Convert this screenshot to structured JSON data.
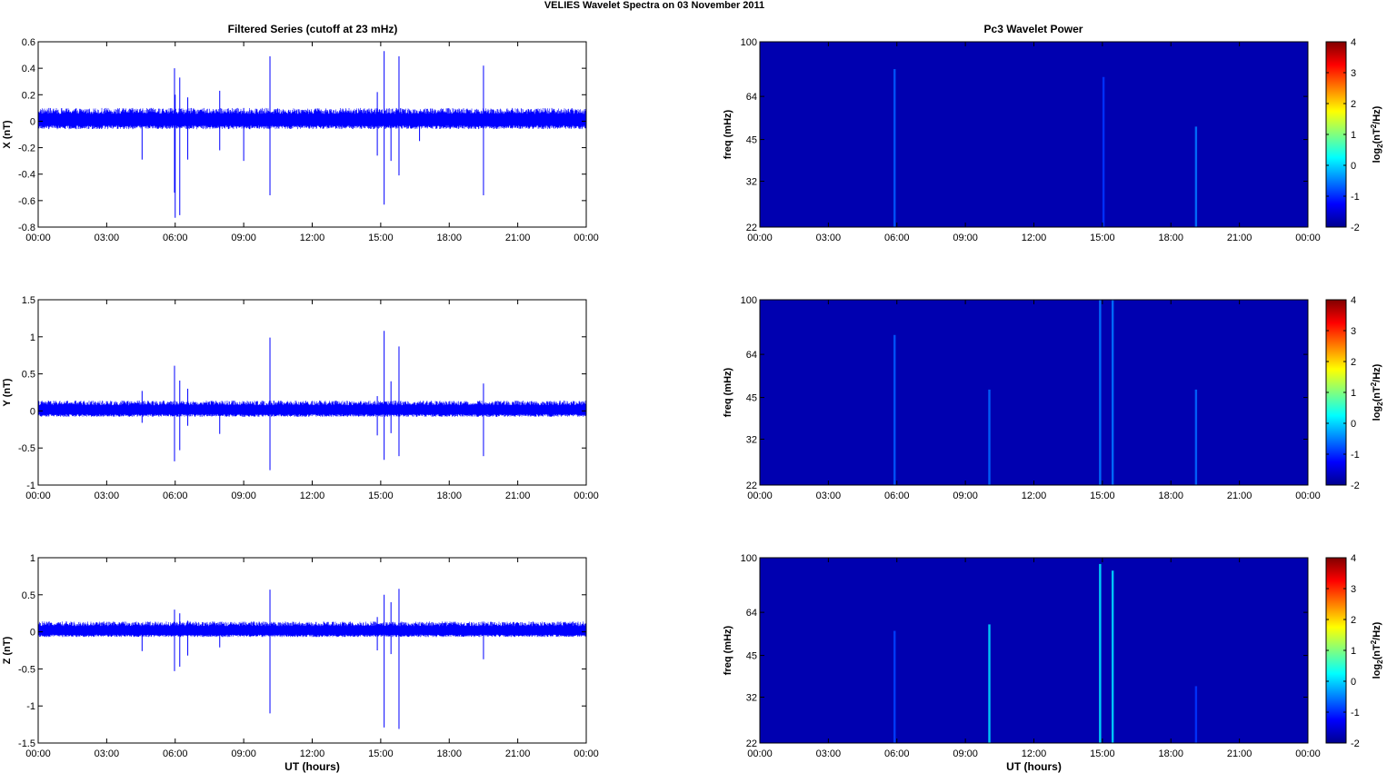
{
  "figure": {
    "title": "VELIES Wavelet Spectra on 03 November  2011",
    "left_title": "Filtered Series (cutoff at 23 mHz)",
    "right_title": "Pc3 Wavelet Power"
  },
  "chart_data": [
    {
      "type": "line",
      "ylabel": "X (nT)",
      "xlabel": "",
      "x_ticks": [
        "00:00",
        "03:00",
        "06:00",
        "09:00",
        "12:00",
        "15:00",
        "18:00",
        "21:00",
        "00:00"
      ],
      "xlim_hours": [
        0,
        24
      ],
      "ylim": [
        -0.8,
        0.6
      ],
      "y_ticks": [
        0.6,
        0.4,
        0.2,
        0,
        -0.2,
        -0.4,
        -0.6,
        -0.8
      ],
      "series": [
        {
          "noise_band": [
            -0.06,
            0.1
          ],
          "spikes": [
            {
              "x": 4.55,
              "lo": -0.29,
              "hi": 0.02
            },
            {
              "x": 5.97,
              "lo": -0.54,
              "hi": 0.4
            },
            {
              "x": 6.0,
              "lo": -0.73,
              "hi": 0.2
            },
            {
              "x": 6.2,
              "lo": -0.71,
              "hi": 0.33
            },
            {
              "x": 6.55,
              "lo": -0.29,
              "hi": 0.18
            },
            {
              "x": 7.95,
              "lo": -0.22,
              "hi": 0.23
            },
            {
              "x": 9.0,
              "lo": -0.3,
              "hi": 0.1
            },
            {
              "x": 10.15,
              "lo": -0.56,
              "hi": 0.49
            },
            {
              "x": 14.85,
              "lo": -0.26,
              "hi": 0.22
            },
            {
              "x": 15.15,
              "lo": -0.63,
              "hi": 0.53
            },
            {
              "x": 15.45,
              "lo": -0.3,
              "hi": 0.05
            },
            {
              "x": 15.8,
              "lo": -0.41,
              "hi": 0.49
            },
            {
              "x": 16.7,
              "lo": -0.15,
              "hi": 0.05
            },
            {
              "x": 19.5,
              "lo": -0.56,
              "hi": 0.42
            }
          ]
        }
      ]
    },
    {
      "type": "line",
      "ylabel": "Y (nT)",
      "xlabel": "",
      "x_ticks": [
        "00:00",
        "03:00",
        "06:00",
        "09:00",
        "12:00",
        "15:00",
        "18:00",
        "21:00",
        "00:00"
      ],
      "xlim_hours": [
        0,
        24
      ],
      "ylim": [
        -1,
        1.5
      ],
      "y_ticks": [
        1.5,
        1,
        0.5,
        0,
        -0.5,
        -1
      ],
      "series": [
        {
          "noise_band": [
            -0.08,
            0.14
          ],
          "spikes": [
            {
              "x": 4.55,
              "lo": -0.16,
              "hi": 0.27
            },
            {
              "x": 5.97,
              "lo": -0.68,
              "hi": 0.61
            },
            {
              "x": 6.2,
              "lo": -0.53,
              "hi": 0.41
            },
            {
              "x": 6.55,
              "lo": -0.2,
              "hi": 0.3
            },
            {
              "x": 7.95,
              "lo": -0.31,
              "hi": 0.1
            },
            {
              "x": 10.15,
              "lo": -0.8,
              "hi": 0.99
            },
            {
              "x": 14.85,
              "lo": -0.33,
              "hi": 0.2
            },
            {
              "x": 15.15,
              "lo": -0.66,
              "hi": 1.08
            },
            {
              "x": 15.45,
              "lo": -0.3,
              "hi": 0.4
            },
            {
              "x": 15.8,
              "lo": -0.61,
              "hi": 0.87
            },
            {
              "x": 19.5,
              "lo": -0.61,
              "hi": 0.37
            }
          ]
        }
      ]
    },
    {
      "type": "line",
      "ylabel": "Z (nT)",
      "xlabel": "UT (hours)",
      "x_ticks": [
        "00:00",
        "03:00",
        "06:00",
        "09:00",
        "12:00",
        "15:00",
        "18:00",
        "21:00",
        "00:00"
      ],
      "xlim_hours": [
        0,
        24
      ],
      "ylim": [
        -1.5,
        1
      ],
      "y_ticks": [
        1,
        0.5,
        0,
        -0.5,
        -1,
        -1.5
      ],
      "series": [
        {
          "noise_band": [
            -0.07,
            0.14
          ],
          "spikes": [
            {
              "x": 4.55,
              "lo": -0.26,
              "hi": 0.1
            },
            {
              "x": 5.97,
              "lo": -0.53,
              "hi": 0.3
            },
            {
              "x": 6.2,
              "lo": -0.47,
              "hi": 0.25
            },
            {
              "x": 6.55,
              "lo": -0.32,
              "hi": 0.15
            },
            {
              "x": 7.95,
              "lo": -0.21,
              "hi": 0.1
            },
            {
              "x": 10.15,
              "lo": -1.1,
              "hi": 0.57
            },
            {
              "x": 14.85,
              "lo": -0.25,
              "hi": 0.2
            },
            {
              "x": 15.15,
              "lo": -1.29,
              "hi": 0.5
            },
            {
              "x": 15.45,
              "lo": -0.3,
              "hi": 0.4
            },
            {
              "x": 15.8,
              "lo": -1.31,
              "hi": 0.58
            },
            {
              "x": 19.5,
              "lo": -0.37,
              "hi": 0.12
            }
          ]
        }
      ]
    },
    {
      "type": "heatmap",
      "ylabel": "freq (mHz)",
      "xlabel": "",
      "x_ticks": [
        "00:00",
        "03:00",
        "06:00",
        "09:00",
        "12:00",
        "15:00",
        "18:00",
        "21:00",
        "00:00"
      ],
      "xlim_hours": [
        0,
        24
      ],
      "y_ticks": [
        "100",
        "64",
        "45",
        "32",
        "22"
      ],
      "y_scale": "log",
      "ylim": [
        22,
        100
      ],
      "colorbar": {
        "ticks": [
          "4",
          "3",
          "2",
          "1",
          "0",
          "-1",
          "-2"
        ],
        "range": [
          -2,
          4
        ],
        "label": "log2(nT^2/Hz)"
      },
      "features": [
        {
          "x": 5.9,
          "level": -1.3,
          "top_mhz": 80
        },
        {
          "x": 15.05,
          "level": -1.6,
          "top_mhz": 75
        },
        {
          "x": 19.1,
          "level": -1.1,
          "top_mhz": 50
        }
      ]
    },
    {
      "type": "heatmap",
      "ylabel": "freq (mHz)",
      "xlabel": "",
      "x_ticks": [
        "00:00",
        "03:00",
        "06:00",
        "09:00",
        "12:00",
        "15:00",
        "18:00",
        "21:00",
        "00:00"
      ],
      "xlim_hours": [
        0,
        24
      ],
      "y_ticks": [
        "100",
        "64",
        "45",
        "32",
        "22"
      ],
      "y_scale": "log",
      "ylim": [
        22,
        100
      ],
      "colorbar": {
        "ticks": [
          "4",
          "3",
          "2",
          "1",
          "0",
          "-1",
          "-2"
        ],
        "range": [
          -2,
          4
        ],
        "label": "log2(nT^2/Hz)"
      },
      "features": [
        {
          "x": 5.9,
          "level": -1.3,
          "top_mhz": 75
        },
        {
          "x": 10.05,
          "level": -1.2,
          "top_mhz": 48
        },
        {
          "x": 14.9,
          "level": -1.1,
          "top_mhz": 100
        },
        {
          "x": 15.45,
          "level": -1.1,
          "top_mhz": 100
        },
        {
          "x": 19.1,
          "level": -1.2,
          "top_mhz": 48
        }
      ]
    },
    {
      "type": "heatmap",
      "ylabel": "freq (mHz)",
      "xlabel": "UT (hours)",
      "x_ticks": [
        "00:00",
        "03:00",
        "06:00",
        "09:00",
        "12:00",
        "15:00",
        "18:00",
        "21:00",
        "00:00"
      ],
      "xlim_hours": [
        0,
        24
      ],
      "y_ticks": [
        "100",
        "64",
        "45",
        "32",
        "22"
      ],
      "y_scale": "log",
      "ylim": [
        22,
        100
      ],
      "colorbar": {
        "ticks": [
          "4",
          "3",
          "2",
          "1",
          "0",
          "-1",
          "-2"
        ],
        "range": [
          -2,
          4
        ],
        "label": "log2(nT^2/Hz)"
      },
      "features": [
        {
          "x": 5.9,
          "level": -1.5,
          "top_mhz": 55
        },
        {
          "x": 10.05,
          "level": -0.3,
          "top_mhz": 58
        },
        {
          "x": 14.9,
          "level": -0.2,
          "top_mhz": 95
        },
        {
          "x": 15.45,
          "level": -0.3,
          "top_mhz": 90
        },
        {
          "x": 19.1,
          "level": -1.6,
          "top_mhz": 35
        }
      ]
    }
  ]
}
